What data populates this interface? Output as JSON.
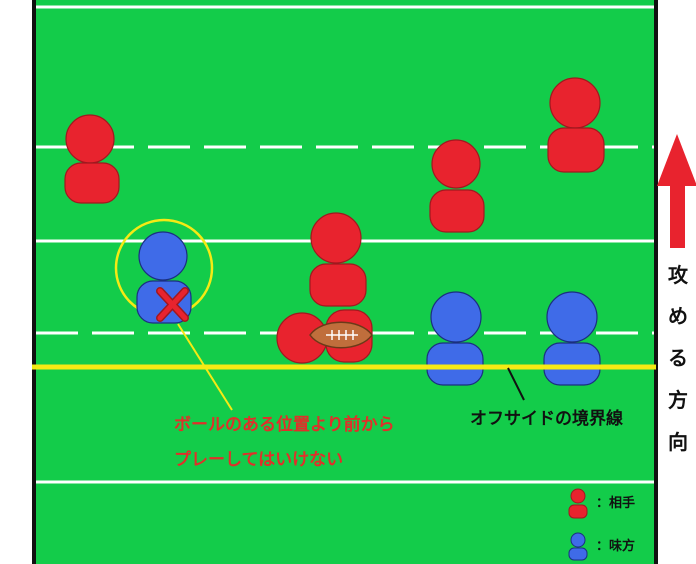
{
  "colors": {
    "field": "#13cc4a",
    "border": "#111111",
    "line": "#ffffff",
    "offside_line": "#f5ea14",
    "opponent": "#e8232e",
    "ally": "#3f6be8",
    "ball": "#c06e3c",
    "arrow": "#e8232e",
    "note_text": "#e0302a"
  },
  "annotation": {
    "line1": "ボールのある位置より前から",
    "line2": "プレーしてはいけない"
  },
  "offside_label": "オフサイドの境界線",
  "direction_label": [
    "攻",
    "め",
    "る",
    "方",
    "向"
  ],
  "legend": [
    {
      "key": "opponent",
      "label": "：相手"
    },
    {
      "key": "ally",
      "label": "：味方"
    }
  ],
  "icons": {
    "foul_mark": "cross-mark-icon",
    "ball": "rugby-ball-icon",
    "direction": "arrow-up-icon"
  }
}
